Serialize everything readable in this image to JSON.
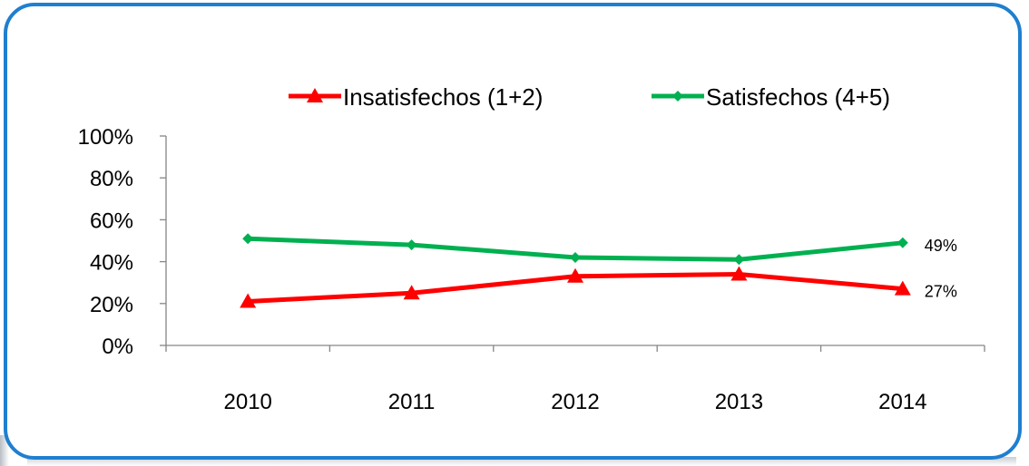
{
  "chart_data": {
    "type": "line",
    "categories": [
      "2010",
      "2011",
      "2012",
      "2013",
      "2014"
    ],
    "series": [
      {
        "name": "Insatisfechos (1+2)",
        "values": [
          21,
          25,
          33,
          34,
          27
        ],
        "color": "#ff0000",
        "marker": "triangle",
        "end_label": "27%"
      },
      {
        "name": "Satisfechos (4+5)",
        "values": [
          51,
          48,
          42,
          41,
          49
        ],
        "color": "#00b050",
        "marker": "diamond",
        "end_label": "49%"
      }
    ],
    "ylim": [
      0,
      100
    ],
    "yticks": [
      "0%",
      "20%",
      "40%",
      "60%",
      "80%",
      "100%"
    ],
    "y_tick_values": [
      0,
      20,
      40,
      60,
      80,
      100
    ],
    "legend_position": "top",
    "grid": false,
    "frame_color": "#1f7fd0"
  }
}
